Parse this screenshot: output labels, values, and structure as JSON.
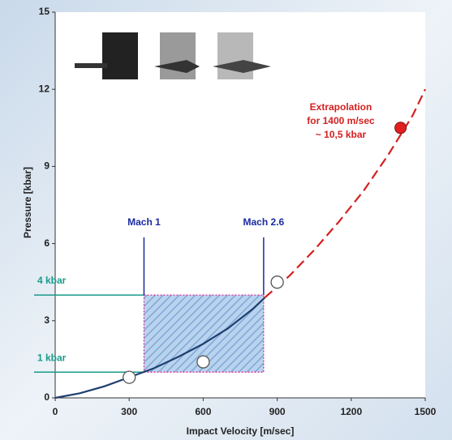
{
  "chart_data": {
    "type": "line",
    "xlabel": "Impact Velocity [m/sec]",
    "ylabel": "Pressure [kbar]",
    "xlim": [
      0,
      1500
    ],
    "ylim": [
      0,
      15
    ],
    "xticks": [
      0,
      300,
      600,
      900,
      1200,
      1500
    ],
    "yticks": [
      0,
      3,
      6,
      9,
      12,
      15
    ],
    "series": [
      {
        "color": "#1f3f6e",
        "style": "solid",
        "x": [
          0,
          100,
          200,
          300,
          400,
          500,
          600,
          700,
          800,
          850
        ],
        "values": [
          0,
          0.18,
          0.45,
          0.8,
          1.15,
          1.6,
          2.1,
          2.7,
          3.45,
          3.9
        ]
      },
      {
        "color": "#d42020",
        "style": "dashed",
        "x": [
          850,
          950,
          1050,
          1150,
          1250,
          1350,
          1450,
          1500
        ],
        "values": [
          3.9,
          4.75,
          5.75,
          6.85,
          8.05,
          9.45,
          11.0,
          12.0
        ]
      }
    ],
    "points": {
      "x": [
        300,
        600,
        900
      ],
      "values": [
        0.8,
        1.4,
        4.5
      ]
    },
    "highlight": {
      "x": 1400,
      "value": 10.5,
      "color": "#e02020"
    },
    "annotation": {
      "lines": [
        "Extrapolation",
        "for 1400 m/sec",
        "~ 10,5 kbar"
      ],
      "color": "#d42020"
    },
    "region": {
      "xlim": [
        360,
        845
      ],
      "ylim": [
        1,
        4
      ]
    },
    "x_markers": [
      {
        "label": "Mach 1",
        "value": 360
      },
      {
        "label": "Mach 2.6",
        "value": 845
      }
    ],
    "y_markers": [
      {
        "label": "4 kbar",
        "value": 4
      },
      {
        "label": "1 kbar",
        "value": 1
      }
    ]
  }
}
